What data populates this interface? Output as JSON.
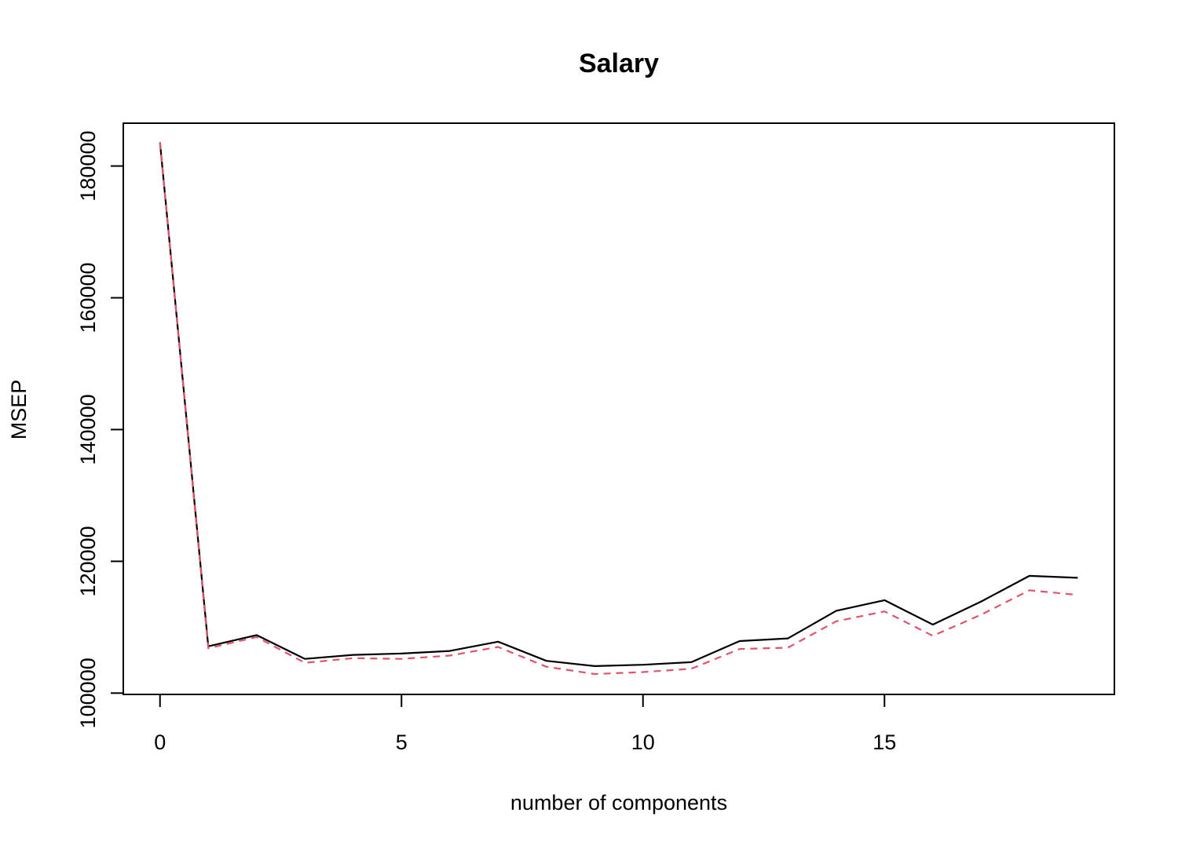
{
  "chart_data": {
    "type": "line",
    "title": "Salary",
    "xlabel": "number of components",
    "ylabel": "MSEP",
    "xlim": [
      -0.76,
      19.76
    ],
    "ylim": [
      99800,
      186500
    ],
    "x_ticks": [
      0,
      5,
      10,
      15
    ],
    "x_tick_labels": [
      "0",
      "5",
      "10",
      "15"
    ],
    "y_ticks": [
      100000,
      120000,
      140000,
      160000,
      180000
    ],
    "y_tick_labels": [
      "100000",
      "120000",
      "140000",
      "160000",
      "180000"
    ],
    "grid": false,
    "legend": "none",
    "x": [
      0,
      1,
      2,
      3,
      4,
      5,
      6,
      7,
      8,
      9,
      10,
      11,
      12,
      13,
      14,
      15,
      16,
      17,
      18,
      19
    ],
    "series": [
      {
        "style": "solid",
        "color": "#000000",
        "values": [
          183600,
          107100,
          108800,
          105200,
          105800,
          106000,
          106400,
          107800,
          104900,
          104100,
          104300,
          104700,
          107900,
          108300,
          112500,
          114100,
          110400,
          113900,
          117800,
          117500
        ]
      },
      {
        "style": "dashed",
        "color": "#DF536B",
        "values": [
          183600,
          106800,
          108500,
          104600,
          105300,
          105200,
          105700,
          107000,
          104000,
          102900,
          103200,
          103700,
          106700,
          106900,
          110900,
          112400,
          108700,
          111900,
          115600,
          114900
        ]
      }
    ]
  }
}
